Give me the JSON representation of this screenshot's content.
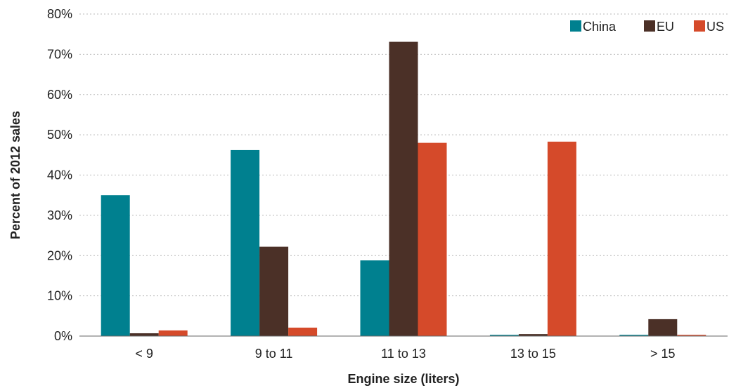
{
  "chart_data": {
    "type": "bar",
    "title": "",
    "xlabel": "Engine size (liters)",
    "ylabel": "Percent of 2012 sales",
    "categories": [
      "< 9",
      "9 to 11",
      "11 to 13",
      "13 to 15",
      "> 15"
    ],
    "series": [
      {
        "name": "China",
        "color": "#00808f",
        "values": [
          35,
          46.2,
          18.8,
          0.3,
          0.3
        ]
      },
      {
        "name": "EU",
        "color": "#4b3027",
        "values": [
          0.7,
          22.2,
          73.1,
          0.5,
          4.2
        ]
      },
      {
        "name": "US",
        "color": "#d54a2a",
        "values": [
          1.4,
          2.1,
          48,
          48.3,
          0.3
        ]
      }
    ],
    "ylim": [
      0,
      80
    ],
    "yticks": [
      0,
      10,
      20,
      30,
      40,
      50,
      60,
      70,
      80
    ],
    "ytick_labels": [
      "0%",
      "10%",
      "20%",
      "30%",
      "40%",
      "50%",
      "60%",
      "70%",
      "80%"
    ],
    "grid": true,
    "legend_position": "top-right"
  }
}
